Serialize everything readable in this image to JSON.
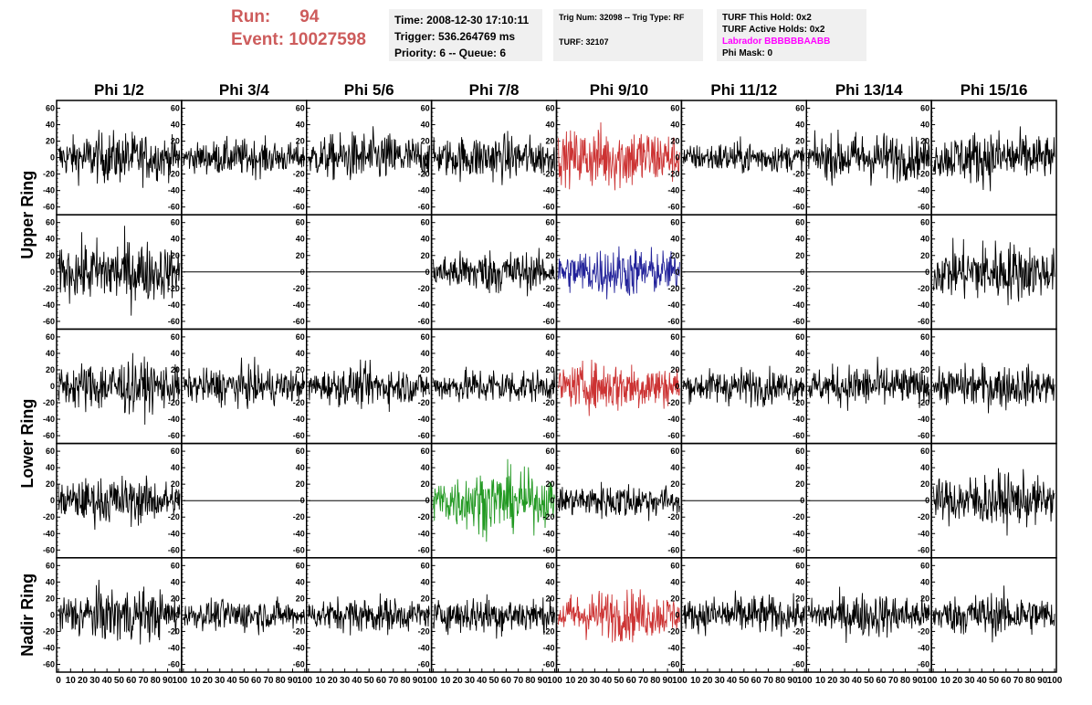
{
  "run_info": {
    "run_label": "Run:",
    "run_value": "94",
    "event_label": "Event:",
    "event_value": "10027598"
  },
  "header_box_time": {
    "time": "Time: 2008-12-30 17:10:11",
    "trigger": "Trigger: 536.264769 ms",
    "priority_queue": "Priority: 6 -- Queue: 6"
  },
  "header_box_trigger": {
    "trig_line": "Trig Num: 32098 -- Trig Type: RF",
    "turf_line": "TURF: 32107"
  },
  "header_box_turf": {
    "this_hold": "TURF This Hold: 0x2",
    "active_holds": "TURF Active Holds: 0x2",
    "labrador": "Labrador BBBBBBAABB",
    "phi_mask": "Phi Mask: 0",
    "labrador_color": "#ff00ff"
  },
  "chart_data": {
    "type": "line",
    "columns": [
      "Phi 1/2",
      "Phi 3/4",
      "Phi 5/6",
      "Phi 7/8",
      "Phi 9/10",
      "Phi 11/12",
      "Phi 13/14",
      "Phi 15/16"
    ],
    "ring_labels": [
      {
        "name": "Upper Ring",
        "rows": [
          0,
          1
        ]
      },
      {
        "name": "Lower Ring",
        "rows": [
          2,
          3
        ]
      },
      {
        "name": "Nadir Ring",
        "rows": [
          4
        ]
      }
    ],
    "xlim": [
      0,
      100
    ],
    "ylim": [
      -65,
      65
    ],
    "x_ticks": [
      0,
      10,
      20,
      30,
      40,
      50,
      60,
      70,
      80,
      90,
      100
    ],
    "y_ticks": [
      -60,
      -40,
      -20,
      0,
      20,
      40,
      60
    ],
    "colors": {
      "default": "#000000",
      "red": "#cc3333",
      "blue": "#22229a",
      "green": "#229922"
    },
    "panels": [
      [
        {
          "a": 14,
          "c": "default"
        },
        {
          "a": 10,
          "c": "default"
        },
        {
          "a": 14,
          "c": "default"
        },
        {
          "a": 13,
          "c": "default"
        },
        {
          "a": 18,
          "c": "red"
        },
        {
          "a": 9,
          "c": "default"
        },
        {
          "a": 14,
          "c": "default"
        },
        {
          "a": 15,
          "c": "default"
        }
      ],
      [
        {
          "a": 18,
          "c": "default"
        },
        {
          "a": 0,
          "c": "default"
        },
        {
          "a": 0,
          "c": "default"
        },
        {
          "a": 12,
          "c": "default"
        },
        {
          "a": 14,
          "c": "blue"
        },
        {
          "a": 0,
          "c": "default"
        },
        {
          "a": 0,
          "c": "default"
        },
        {
          "a": 17,
          "c": "default"
        }
      ],
      [
        {
          "a": 15,
          "c": "default"
        },
        {
          "a": 11,
          "c": "default"
        },
        {
          "a": 11,
          "c": "default"
        },
        {
          "a": 10,
          "c": "default"
        },
        {
          "a": 14,
          "c": "red"
        },
        {
          "a": 10,
          "c": "default"
        },
        {
          "a": 12,
          "c": "default"
        },
        {
          "a": 12,
          "c": "default"
        }
      ],
      [
        {
          "a": 13,
          "c": "default"
        },
        {
          "a": 0,
          "c": "default"
        },
        {
          "a": 0,
          "c": "default"
        },
        {
          "a": 17,
          "c": "green"
        },
        {
          "a": 10,
          "c": "default"
        },
        {
          "a": 0,
          "c": "default"
        },
        {
          "a": 0,
          "c": "default"
        },
        {
          "a": 15,
          "c": "default"
        }
      ],
      [
        {
          "a": 15,
          "c": "default"
        },
        {
          "a": 9,
          "c": "default"
        },
        {
          "a": 10,
          "c": "default"
        },
        {
          "a": 11,
          "c": "default"
        },
        {
          "a": 14,
          "c": "red"
        },
        {
          "a": 11,
          "c": "default"
        },
        {
          "a": 12,
          "c": "default"
        },
        {
          "a": 12,
          "c": "default"
        }
      ]
    ]
  }
}
